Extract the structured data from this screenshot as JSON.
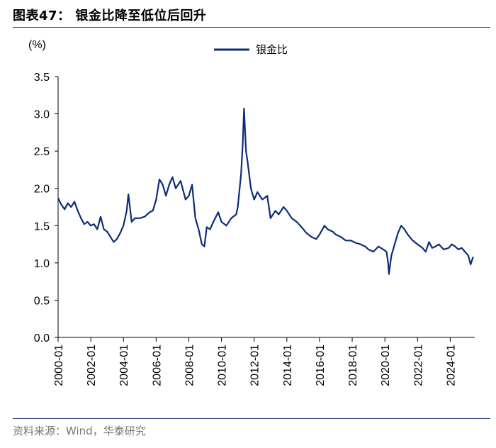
{
  "header": {
    "title": "图表47： 银金比降至低位后回升"
  },
  "footer": {
    "source": "资料来源：Wind，华泰研究"
  },
  "colors": {
    "line": "#0d2c7a",
    "rule": "#1f3a7a"
  },
  "chart_data": {
    "type": "line",
    "title": "银金比降至低位后回升",
    "ylabel": "(%)",
    "xlabel": "",
    "ylim": [
      0,
      3.5
    ],
    "yticks": [
      "0.0",
      "0.5",
      "1.0",
      "1.5",
      "2.0",
      "2.5",
      "3.0",
      "3.5"
    ],
    "xticks": [
      "2000-01",
      "2002-01",
      "2004-01",
      "2006-01",
      "2008-01",
      "2010-01",
      "2012-01",
      "2014-01",
      "2016-01",
      "2018-01",
      "2020-01",
      "2022-01",
      "2024-01"
    ],
    "xlim": [
      2000.0,
      2025.5
    ],
    "legend": {
      "position": "top-center",
      "entries": [
        "银金比"
      ]
    },
    "series": [
      {
        "name": "银金比",
        "x": [
          2000.0,
          2000.2,
          2000.4,
          2000.6,
          2000.8,
          2001.0,
          2001.2,
          2001.4,
          2001.6,
          2001.8,
          2002.0,
          2002.2,
          2002.4,
          2002.6,
          2002.8,
          2003.0,
          2003.2,
          2003.4,
          2003.6,
          2003.8,
          2004.0,
          2004.2,
          2004.3,
          2004.5,
          2004.7,
          2005.0,
          2005.3,
          2005.6,
          2005.8,
          2006.0,
          2006.2,
          2006.4,
          2006.6,
          2006.8,
          2007.0,
          2007.2,
          2007.5,
          2007.8,
          2008.0,
          2008.2,
          2008.4,
          2008.6,
          2008.8,
          2008.95,
          2009.1,
          2009.3,
          2009.5,
          2009.8,
          2010.0,
          2010.3,
          2010.6,
          2010.9,
          2011.0,
          2011.2,
          2011.3,
          2011.38,
          2011.5,
          2011.6,
          2011.8,
          2012.0,
          2012.2,
          2012.5,
          2012.8,
          2013.0,
          2013.3,
          2013.5,
          2013.8,
          2014.0,
          2014.3,
          2014.6,
          2014.9,
          2015.2,
          2015.5,
          2015.8,
          2016.0,
          2016.3,
          2016.5,
          2016.8,
          2017.0,
          2017.3,
          2017.6,
          2017.9,
          2018.2,
          2018.5,
          2018.8,
          2019.0,
          2019.3,
          2019.6,
          2019.9,
          2020.1,
          2020.2,
          2020.25,
          2020.4,
          2020.6,
          2020.8,
          2021.0,
          2021.2,
          2021.4,
          2021.7,
          2022.0,
          2022.3,
          2022.5,
          2022.7,
          2022.9,
          2023.1,
          2023.3,
          2023.6,
          2023.9,
          2024.1,
          2024.3,
          2024.5,
          2024.7,
          2024.9,
          2025.1,
          2025.25,
          2025.4
        ],
        "values": [
          1.87,
          1.78,
          1.72,
          1.8,
          1.75,
          1.82,
          1.7,
          1.6,
          1.52,
          1.55,
          1.5,
          1.52,
          1.45,
          1.62,
          1.45,
          1.42,
          1.35,
          1.28,
          1.32,
          1.4,
          1.5,
          1.7,
          1.92,
          1.55,
          1.6,
          1.6,
          1.62,
          1.68,
          1.7,
          1.85,
          2.12,
          2.05,
          1.9,
          2.05,
          2.15,
          2.0,
          2.1,
          1.85,
          1.9,
          2.05,
          1.6,
          1.45,
          1.25,
          1.22,
          1.48,
          1.45,
          1.55,
          1.68,
          1.55,
          1.5,
          1.6,
          1.65,
          1.75,
          2.2,
          2.6,
          3.07,
          2.5,
          2.35,
          2.0,
          1.85,
          1.95,
          1.85,
          1.9,
          1.6,
          1.7,
          1.65,
          1.75,
          1.7,
          1.6,
          1.55,
          1.48,
          1.4,
          1.35,
          1.32,
          1.38,
          1.5,
          1.45,
          1.42,
          1.38,
          1.35,
          1.3,
          1.3,
          1.27,
          1.25,
          1.22,
          1.18,
          1.15,
          1.22,
          1.18,
          1.15,
          1.0,
          0.85,
          1.1,
          1.25,
          1.4,
          1.5,
          1.45,
          1.38,
          1.3,
          1.25,
          1.2,
          1.15,
          1.28,
          1.2,
          1.22,
          1.25,
          1.18,
          1.2,
          1.25,
          1.22,
          1.18,
          1.2,
          1.15,
          1.1,
          0.98,
          1.08
        ]
      }
    ]
  }
}
